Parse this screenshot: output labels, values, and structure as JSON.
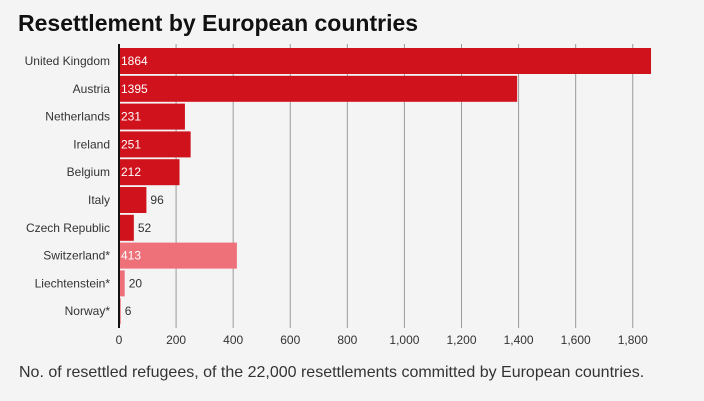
{
  "chart_data": {
    "type": "bar",
    "orientation": "horizontal",
    "title": "Resettlement by European countries",
    "caption": "No. of resettled refugees, of the 22,000 resettlements committed by European countries.",
    "categories": [
      "United Kingdom",
      "Austria",
      "Netherlands",
      "Ireland",
      "Belgium",
      "Italy",
      "Czech Republic",
      "Switzerland*",
      "Liechtenstein*",
      "Norway*"
    ],
    "values": [
      1864,
      1395,
      231,
      251,
      212,
      96,
      52,
      413,
      20,
      6
    ],
    "highlight": [
      false,
      false,
      false,
      false,
      false,
      false,
      false,
      true,
      true,
      true
    ],
    "xlim": [
      0,
      1920
    ],
    "xticks": [
      0,
      200,
      400,
      600,
      800,
      1000,
      1200,
      1400,
      1600,
      1800
    ],
    "xtick_labels": [
      "0",
      "200",
      "400",
      "600",
      "800",
      "1,000",
      "1,200",
      "1,400",
      "1,600",
      "1,800"
    ],
    "grid": true,
    "colors": {
      "primary": "#d0121c",
      "highlight": "#ee7079",
      "grid": "#9a9a9a",
      "axis": "#111111",
      "label_inside": "#ffffff",
      "label_outside": "#333333",
      "text": "#333333"
    }
  }
}
